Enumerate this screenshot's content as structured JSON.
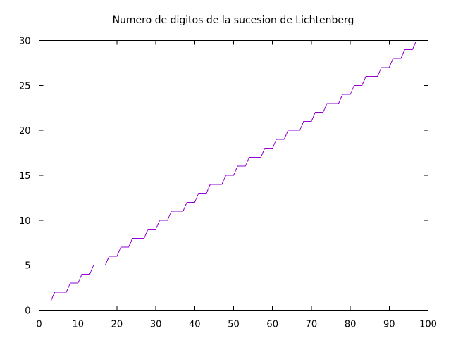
{
  "chart_data": {
    "type": "line",
    "title": "Numero de digitos de la sucesion de Lichtenberg",
    "xlabel": "",
    "ylabel": "",
    "xlim": [
      0,
      100
    ],
    "ylim": [
      0,
      30
    ],
    "x_ticks": [
      0,
      10,
      20,
      30,
      40,
      50,
      60,
      70,
      80,
      90,
      100
    ],
    "y_ticks": [
      0,
      5,
      10,
      15,
      20,
      25,
      30
    ],
    "x_tick_labels": [
      "0",
      "10",
      "20",
      "30",
      "40",
      "50",
      "60",
      "70",
      "80",
      "90",
      "100"
    ],
    "y_tick_labels": [
      "0",
      "5",
      "10",
      "15",
      "20",
      "25",
      "30"
    ],
    "grid": false,
    "legend": "none",
    "series": [
      {
        "color": "#9400d3",
        "x": [
          0,
          1,
          2,
          3,
          4,
          5,
          6,
          7,
          8,
          9,
          10,
          11,
          12,
          13,
          14,
          15,
          16,
          17,
          18,
          19,
          20,
          21,
          22,
          23,
          24,
          25,
          26,
          27,
          28,
          29,
          30,
          31,
          32,
          33,
          34,
          35,
          36,
          37,
          38,
          39,
          40,
          41,
          42,
          43,
          44,
          45,
          46,
          47,
          48,
          49,
          50,
          51,
          52,
          53,
          54,
          55,
          56,
          57,
          58,
          59,
          60,
          61,
          62,
          63,
          64,
          65,
          66,
          67,
          68,
          69,
          70,
          71,
          72,
          73,
          74,
          75,
          76,
          77,
          78,
          79,
          80,
          81,
          82,
          83,
          84,
          85,
          86,
          87,
          88,
          89,
          90,
          91,
          92,
          93,
          94,
          95,
          96,
          97
        ],
        "y": [
          1,
          1,
          1,
          1,
          2,
          2,
          2,
          2,
          3,
          3,
          3,
          4,
          4,
          4,
          5,
          5,
          5,
          5,
          6,
          6,
          6,
          7,
          7,
          7,
          8,
          8,
          8,
          8,
          9,
          9,
          9,
          10,
          10,
          10,
          11,
          11,
          11,
          11,
          12,
          12,
          12,
          13,
          13,
          13,
          14,
          14,
          14,
          14,
          15,
          15,
          15,
          16,
          16,
          16,
          17,
          17,
          17,
          17,
          18,
          18,
          18,
          19,
          19,
          19,
          20,
          20,
          20,
          20,
          21,
          21,
          21,
          22,
          22,
          22,
          23,
          23,
          23,
          23,
          24,
          24,
          24,
          25,
          25,
          25,
          26,
          26,
          26,
          26,
          27,
          27,
          27,
          28,
          28,
          28,
          29,
          29,
          29,
          30
        ]
      }
    ]
  }
}
